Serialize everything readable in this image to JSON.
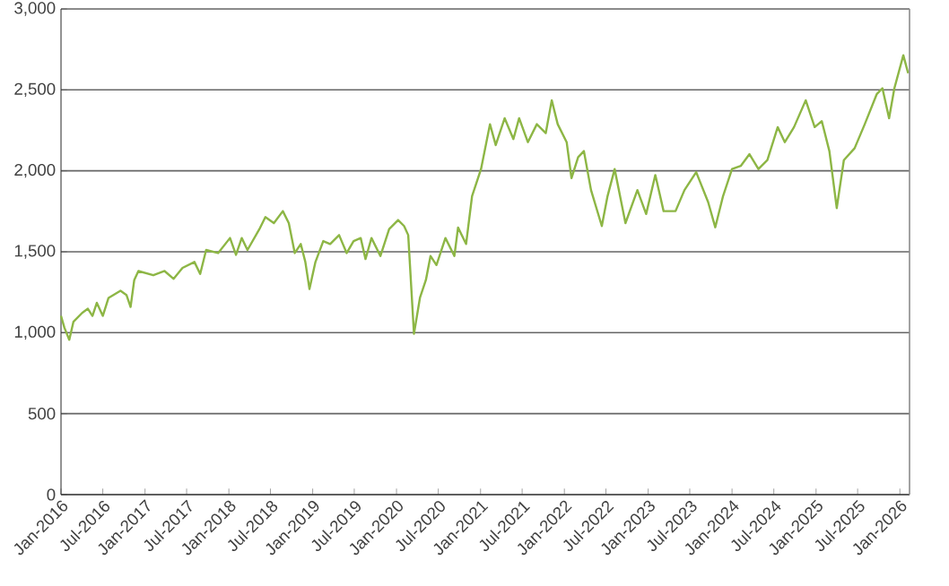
{
  "chart_data": {
    "type": "line",
    "color": "#8db645",
    "grid": "y",
    "xlim": [
      "2016-01-01",
      "2026-02-12"
    ],
    "xticks": [
      {
        "value": "2016-01-01",
        "label": "Jan-2016"
      },
      {
        "value": "2016-07-01",
        "label": "Jul-2016"
      },
      {
        "value": "2017-01-01",
        "label": "Jan-2017"
      },
      {
        "value": "2017-07-01",
        "label": "Jul-2017"
      },
      {
        "value": "2018-01-01",
        "label": "Jan-2018"
      },
      {
        "value": "2018-07-01",
        "label": "Jul-2018"
      },
      {
        "value": "2019-01-01",
        "label": "Jan-2019"
      },
      {
        "value": "2019-07-01",
        "label": "Jul-2019"
      },
      {
        "value": "2020-01-01",
        "label": "Jan-2020"
      },
      {
        "value": "2020-07-01",
        "label": "Jul-2020"
      },
      {
        "value": "2021-01-01",
        "label": "Jan-2021"
      },
      {
        "value": "2021-07-01",
        "label": "Jul-2021"
      },
      {
        "value": "2022-01-01",
        "label": "Jan-2022"
      },
      {
        "value": "2022-07-01",
        "label": "Jul-2022"
      },
      {
        "value": "2023-01-01",
        "label": "Jan-2023"
      },
      {
        "value": "2023-07-01",
        "label": "Jul-2023"
      },
      {
        "value": "2024-01-01",
        "label": "Jan-2024"
      },
      {
        "value": "2024-07-01",
        "label": "Jul-2024"
      },
      {
        "value": "2025-01-01",
        "label": "Jan-2025"
      },
      {
        "value": "2025-07-01",
        "label": "Jul-2025"
      },
      {
        "value": "2026-01-01",
        "label": "Jan-2026"
      }
    ],
    "ylim": [
      0,
      3000
    ],
    "yticks": [
      0,
      500,
      {
        "value": 1000,
        "label": "1,000"
      },
      {
        "value": 1500,
        "label": "1,500"
      },
      {
        "value": 2000,
        "label": "2,000"
      },
      {
        "value": 2500,
        "label": "2,500"
      },
      {
        "value": 3000,
        "label": "3,000"
      }
    ],
    "x": [
      "2016-01-01",
      "2016-01-16",
      "2016-02-06",
      "2016-02-24",
      "2016-04-02",
      "2016-04-27",
      "2016-05-17",
      "2016-06-05",
      "2016-07-01",
      "2016-07-26",
      "2016-09-16",
      "2016-10-12",
      "2016-10-30",
      "2016-11-15",
      "2016-12-03",
      "2017-02-06",
      "2017-03-27",
      "2017-05-05",
      "2017-06-13",
      "2017-08-04",
      "2017-08-29",
      "2017-09-24",
      "2017-11-15",
      "2018-01-06",
      "2018-02-01",
      "2018-02-26",
      "2018-03-23",
      "2018-05-14",
      "2018-06-09",
      "2018-07-16",
      "2018-08-24",
      "2018-09-19",
      "2018-10-15",
      "2018-11-10",
      "2018-11-30",
      "2018-12-18",
      "2019-01-13",
      "2019-02-16",
      "2019-03-18",
      "2019-04-26",
      "2019-05-29",
      "2019-06-28",
      "2019-07-29",
      "2019-08-19",
      "2019-09-14",
      "2019-10-23",
      "2019-11-30",
      "2020-01-08",
      "2020-02-03",
      "2020-02-21",
      "2020-03-17",
      "2020-04-12",
      "2020-05-08",
      "2020-05-28",
      "2020-06-23",
      "2020-08-01",
      "2020-09-09",
      "2020-09-25",
      "2020-10-30",
      "2020-11-25",
      "2021-01-03",
      "2021-02-11",
      "2021-03-08",
      "2021-04-16",
      "2021-05-24",
      "2021-06-18",
      "2021-07-26",
      "2021-09-03",
      "2021-10-12",
      "2021-11-07",
      "2021-12-03",
      "2022-01-11",
      "2022-02-01",
      "2022-03-02",
      "2022-03-27",
      "2022-04-27",
      "2022-06-13",
      "2022-07-08",
      "2022-08-08",
      "2022-09-24",
      "2022-11-15",
      "2022-12-23",
      "2023-02-01",
      "2023-03-09",
      "2023-04-30",
      "2023-06-08",
      "2023-07-29",
      "2023-09-19",
      "2023-10-20",
      "2023-11-23",
      "2024-01-01",
      "2024-02-08",
      "2024-03-17",
      "2024-04-25",
      "2024-06-03",
      "2024-07-18",
      "2024-08-18",
      "2024-09-27",
      "2024-11-17",
      "2024-12-26",
      "2025-01-26",
      "2025-02-28",
      "2025-04-01",
      "2025-05-02",
      "2025-06-18",
      "2025-08-01",
      "2025-09-22",
      "2025-10-17",
      "2025-11-15",
      "2025-12-08",
      "2026-01-16",
      "2026-02-06"
    ],
    "values": [
      1104,
      1030,
      956,
      1067,
      1122,
      1148,
      1104,
      1185,
      1104,
      1215,
      1259,
      1233,
      1159,
      1326,
      1381,
      1355,
      1381,
      1333,
      1400,
      1437,
      1363,
      1511,
      1492,
      1585,
      1481,
      1585,
      1511,
      1640,
      1714,
      1677,
      1751,
      1677,
      1492,
      1548,
      1437,
      1270,
      1437,
      1566,
      1548,
      1603,
      1492,
      1566,
      1585,
      1455,
      1585,
      1474,
      1640,
      1696,
      1659,
      1603,
      993,
      1215,
      1326,
      1474,
      1418,
      1585,
      1474,
      1650,
      1548,
      1844,
      2011,
      2288,
      2159,
      2325,
      2196,
      2325,
      2177,
      2288,
      2233,
      2436,
      2288,
      2177,
      1955,
      2085,
      2122,
      1881,
      1659,
      1844,
      2011,
      1677,
      1881,
      1733,
      1974,
      1751,
      1751,
      1881,
      1992,
      1807,
      1651,
      1844,
      2011,
      2030,
      2103,
      2011,
      2066,
      2270,
      2177,
      2270,
      2436,
      2270,
      2307,
      2122,
      1770,
      2066,
      2140,
      2288,
      2473,
      2510,
      2325,
      2510,
      2714,
      2603
    ]
  }
}
